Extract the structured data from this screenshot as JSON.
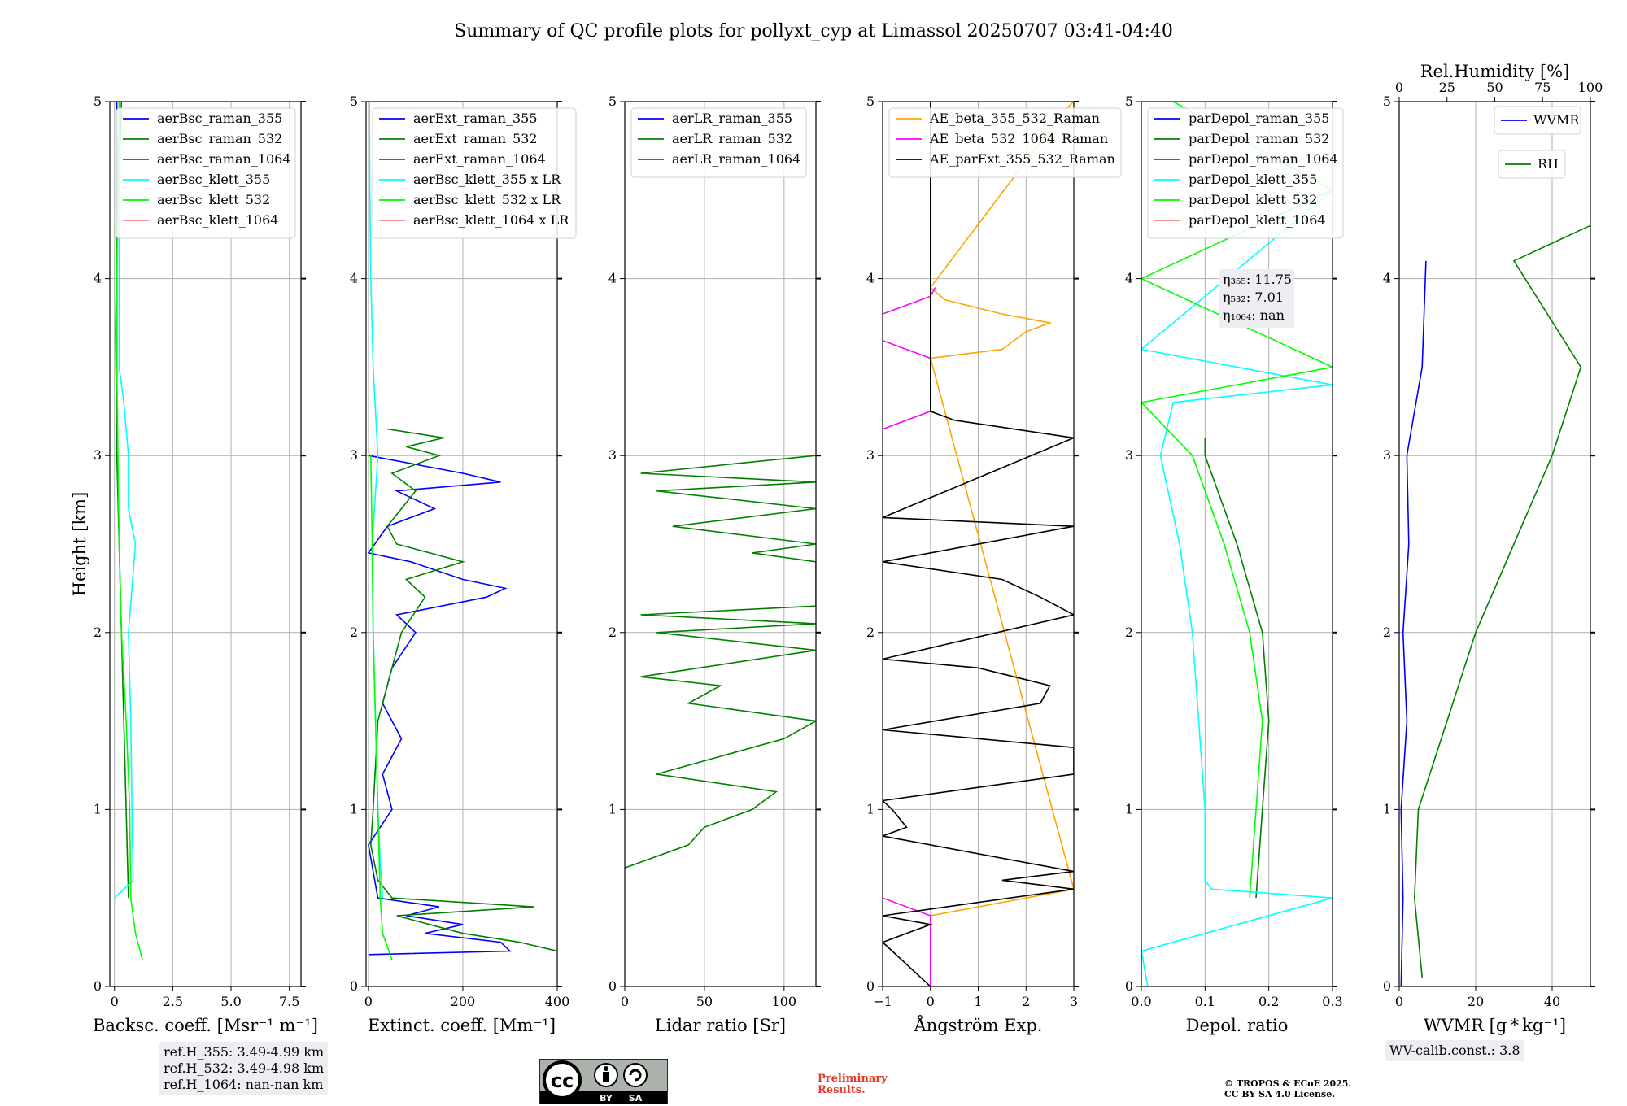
{
  "title": "Summary of QC profile plots for pollyxt_cyp at Limassol 20250707 03:41-04:40",
  "colors": {
    "blue": "#0000ff",
    "green": "#008000",
    "red": "#ff0000",
    "cyan": "#00ffff",
    "lime": "#00ff00",
    "salmon": "#f08080",
    "orange": "#ffa500",
    "magenta": "#ff00ff",
    "black": "#000000",
    "grid": "#b0b0b0"
  },
  "chart_data": [
    {
      "type": "line",
      "xlabel": "Backsc. coeff. [Msr⁻¹ m⁻¹]",
      "ylabel": "Height [km]",
      "xlim": [
        -0.2,
        8.0
      ],
      "ylim": [
        0,
        5
      ],
      "xticks": [
        0,
        2.5,
        5.0,
        7.5
      ],
      "xtick_labels": [
        "0",
        "2.5",
        "5.0",
        "7.5"
      ],
      "yticks": [
        0,
        1,
        2,
        3,
        4,
        5
      ],
      "ytick_labels": [
        "0",
        "1",
        "2",
        "3",
        "4",
        "5"
      ],
      "legend": [
        "aerBsc_raman_355",
        "aerBsc_raman_532",
        "aerBsc_raman_1064",
        "aerBsc_klett_355",
        "aerBsc_klett_532",
        "aerBsc_klett_1064"
      ],
      "series": [
        {
          "name": "aerBsc_raman_355",
          "color": "blue",
          "y": [
            3.2,
            5.0
          ],
          "x": [
            0.1,
            0.1
          ]
        },
        {
          "name": "aerBsc_raman_532",
          "color": "green",
          "y": [
            0.5,
            1.0,
            2.0,
            3.0,
            3.7,
            4.2,
            4.6,
            5.0
          ],
          "x": [
            0.6,
            0.5,
            0.3,
            0.1,
            0.05,
            0.1,
            0.2,
            0.3
          ]
        },
        {
          "name": "aerBsc_klett_355",
          "color": "cyan",
          "y": [
            0.5,
            0.6,
            1.0,
            1.5,
            2.0,
            2.5,
            2.7,
            3.0,
            3.3,
            3.5,
            4.0,
            4.5,
            5.0
          ],
          "x": [
            0.0,
            0.8,
            0.75,
            0.7,
            0.6,
            0.9,
            0.6,
            0.6,
            0.4,
            0.2,
            0.2,
            0.2,
            0.2
          ]
        },
        {
          "name": "aerBsc_klett_532",
          "color": "lime",
          "y": [
            0.15,
            0.3,
            0.5,
            1.0,
            1.5,
            2.0,
            2.5,
            3.0,
            3.5,
            4.0,
            4.5,
            5.0
          ],
          "x": [
            1.2,
            0.9,
            0.7,
            0.65,
            0.5,
            0.3,
            0.2,
            0.15,
            0.1,
            0.1,
            0.15,
            0.2
          ]
        }
      ]
    },
    {
      "type": "line",
      "xlabel": "Extinct. coeff. [Mm⁻¹]",
      "xlim": [
        -5,
        400
      ],
      "ylim": [
        0,
        5
      ],
      "xticks": [
        0,
        200,
        400
      ],
      "xtick_labels": [
        "0",
        "200",
        "400"
      ],
      "yticks": [
        0,
        1,
        2,
        3,
        4,
        5
      ],
      "ytick_labels": [
        "0",
        "1",
        "2",
        "3",
        "4",
        "5"
      ],
      "legend": [
        "aerExt_raman_355",
        "aerExt_raman_532",
        "aerExt_raman_1064",
        "aerBsc_klett_355 x LR",
        "aerBsc_klett_532 x LR",
        "aerBsc_klett_1064 x LR"
      ],
      "series": [
        {
          "name": "aerExt_raman_355",
          "color": "blue",
          "y": [
            0.18,
            0.2,
            0.25,
            0.3,
            0.35,
            0.4,
            0.45,
            0.5,
            0.8,
            1.0,
            1.2,
            1.4,
            1.6,
            1.8,
            2.0,
            2.1,
            2.2,
            2.25,
            2.3,
            2.4,
            2.45,
            2.6,
            2.7,
            2.8,
            2.85,
            2.9,
            3.0
          ],
          "x": [
            0,
            300,
            280,
            120,
            200,
            80,
            150,
            20,
            0,
            50,
            30,
            70,
            30,
            50,
            100,
            60,
            250,
            290,
            200,
            90,
            0,
            40,
            140,
            60,
            280,
            200,
            0
          ]
        },
        {
          "name": "aerExt_raman_532",
          "color": "green",
          "y": [
            0.2,
            0.25,
            0.3,
            0.4,
            0.45,
            0.5,
            0.6,
            0.8,
            1.0,
            1.5,
            2.0,
            2.2,
            2.3,
            2.4,
            2.5,
            2.6,
            2.8,
            2.9,
            3.0,
            3.05,
            3.1,
            3.15
          ],
          "x": [
            400,
            320,
            200,
            60,
            350,
            50,
            20,
            5,
            10,
            20,
            70,
            120,
            80,
            200,
            60,
            40,
            100,
            50,
            150,
            80,
            160,
            40
          ]
        },
        {
          "name": "aerBsc_klett_355 x LR",
          "color": "cyan",
          "y": [
            0.5,
            0.7,
            1.0,
            1.5,
            2.0,
            2.5,
            3.0,
            3.5,
            4.0,
            4.5,
            5.0
          ],
          "x": [
            30,
            25,
            20,
            15,
            10,
            8,
            20,
            10,
            5,
            3,
            2
          ]
        },
        {
          "name": "aerBsc_klett_532 x LR",
          "color": "lime",
          "y": [
            0.15,
            0.3,
            0.5,
            1.0,
            1.5,
            2.0,
            2.5,
            3.0
          ],
          "x": [
            50,
            30,
            25,
            20,
            15,
            10,
            8,
            5
          ]
        }
      ]
    },
    {
      "type": "line",
      "xlabel": "Lidar ratio [Sr]",
      "xlim": [
        0,
        120
      ],
      "ylim": [
        0,
        5
      ],
      "xticks": [
        0,
        50,
        100
      ],
      "xtick_labels": [
        "0",
        "50",
        "100"
      ],
      "yticks": [
        0,
        1,
        2,
        3,
        4,
        5
      ],
      "ytick_labels": [
        "0",
        "1",
        "2",
        "3",
        "4",
        "5"
      ],
      "legend": [
        "aerLR_raman_355",
        "aerLR_raman_532",
        "aerLR_raman_1064"
      ],
      "series": [
        {
          "name": "aerLR_raman_532",
          "color": "green",
          "y": [
            0.67,
            0.8,
            0.9,
            1.0,
            1.1,
            1.2,
            1.3,
            1.4,
            1.5,
            1.6,
            1.7,
            1.75,
            1.9,
            2.0,
            2.05,
            2.1,
            2.15,
            2.4,
            2.45,
            2.5,
            2.6,
            2.7,
            2.8,
            2.85,
            2.9,
            3.0
          ],
          "x": [
            0,
            40,
            50,
            80,
            95,
            20,
            60,
            100,
            120,
            40,
            60,
            10,
            120,
            20,
            120,
            10,
            120,
            120,
            80,
            120,
            30,
            120,
            20,
            120,
            10,
            120
          ]
        }
      ]
    },
    {
      "type": "line",
      "xlabel": "Ångström Exp.",
      "xlim": [
        -1,
        3
      ],
      "ylim": [
        0,
        5
      ],
      "xticks": [
        -1,
        0,
        1,
        2,
        3
      ],
      "xtick_labels": [
        "−1",
        "0",
        "1",
        "2",
        "3"
      ],
      "yticks": [
        0,
        1,
        2,
        3,
        4,
        5
      ],
      "ytick_labels": [
        "0",
        "1",
        "2",
        "3",
        "4",
        "5"
      ],
      "legend": [
        "AE_beta_355_532_Raman",
        "AE_beta_532_1064_Raman",
        "AE_parExt_355_532_Raman"
      ],
      "series": [
        {
          "name": "AE_beta_355_532_Raman",
          "color": "orange",
          "y": [
            0.4,
            0.5,
            0.55,
            3.55,
            3.6,
            3.7,
            3.75,
            3.8,
            3.88,
            3.95,
            4.95,
            5.0
          ],
          "x": [
            0,
            2,
            3,
            0,
            1.5,
            2.0,
            2.5,
            1.5,
            0.3,
            0.0,
            2.8,
            3.0
          ]
        },
        {
          "name": "AE_beta_532_1064_Raman",
          "color": "magenta",
          "y": [
            0.0,
            0.4,
            0.5,
            3.15,
            3.25,
            3.55,
            3.65,
            3.8,
            3.9,
            3.95
          ],
          "x": [
            0,
            0,
            -1,
            -1,
            0,
            0,
            -1,
            -1,
            0,
            0.1
          ]
        },
        {
          "name": "AE_parExt_355_532_Raman",
          "color": "black",
          "y": [
            0.0,
            0.25,
            0.35,
            0.4,
            0.55,
            0.6,
            0.65,
            0.85,
            0.9,
            1.0,
            1.05,
            1.2,
            1.35,
            1.45,
            1.6,
            1.7,
            1.8,
            1.85,
            2.1,
            2.2,
            2.3,
            2.4,
            2.6,
            2.65,
            3.1,
            3.2,
            3.25,
            5.0
          ],
          "x": [
            0,
            -1,
            0,
            -1,
            3,
            1.5,
            3,
            -1,
            -0.5,
            -0.8,
            -1,
            3,
            3,
            -1,
            2.3,
            2.5,
            1.0,
            -1,
            3,
            2.3,
            1.5,
            -1,
            3,
            -1,
            3,
            0.5,
            0,
            0
          ]
        }
      ]
    },
    {
      "type": "line",
      "xlabel": "Depol. ratio",
      "xlim": [
        0,
        0.3
      ],
      "ylim": [
        0,
        5
      ],
      "xticks": [
        0,
        0.1,
        0.2,
        0.3
      ],
      "xtick_labels": [
        "0.0",
        "0.1",
        "0.2",
        "0.3"
      ],
      "yticks": [
        0,
        1,
        2,
        3,
        4,
        5
      ],
      "ytick_labels": [
        "0",
        "1",
        "2",
        "3",
        "4",
        "5"
      ],
      "legend": [
        "parDepol_raman_355",
        "parDepol_raman_532",
        "parDepol_raman_1064",
        "parDepol_klett_355",
        "parDepol_klett_532",
        "parDepol_klett_1064"
      ],
      "series": [
        {
          "name": "parDepol_raman_532",
          "color": "green",
          "y": [
            0.5,
            1.0,
            1.5,
            2.0,
            2.5,
            3.0,
            3.1
          ],
          "x": [
            0.18,
            0.19,
            0.2,
            0.19,
            0.15,
            0.1,
            0.1
          ]
        },
        {
          "name": "parDepol_klett_355",
          "color": "cyan",
          "y": [
            0.0,
            0.2,
            0.5,
            0.55,
            0.6,
            1.0,
            1.5,
            2.0,
            2.5,
            3.0,
            3.3,
            3.4,
            3.6,
            4.5
          ],
          "x": [
            0.01,
            0.0,
            0.3,
            0.11,
            0.1,
            0.1,
            0.09,
            0.08,
            0.06,
            0.03,
            0.05,
            0.3,
            0.0,
            0.3
          ]
        },
        {
          "name": "parDepol_klett_532",
          "color": "lime",
          "y": [
            0.5,
            1.0,
            1.5,
            2.0,
            2.5,
            3.0,
            3.3,
            3.5,
            4.0,
            4.5,
            5.0
          ],
          "x": [
            0.17,
            0.18,
            0.19,
            0.17,
            0.13,
            0.08,
            0.0,
            0.3,
            0.0,
            0.3,
            0.05
          ]
        }
      ],
      "annotation": [
        "η₃₅₅: 11.75",
        "η₅₃₂: 7.01",
        "η₁₀₆₄: nan"
      ]
    },
    {
      "type": "line",
      "xlabel": "WVMR [g * kg⁻¹]",
      "x2label": "Rel.Humidity [%]",
      "xlim": [
        0,
        50
      ],
      "x2lim": [
        0,
        100
      ],
      "ylim": [
        0,
        5
      ],
      "xticks": [
        0,
        20,
        40
      ],
      "xtick_labels": [
        "0",
        "20",
        "40"
      ],
      "x2ticks": [
        0,
        25,
        50,
        75,
        100
      ],
      "x2tick_labels": [
        "0",
        "25",
        "50",
        "75",
        "100"
      ],
      "yticks": [
        0,
        1,
        2,
        3,
        4,
        5
      ],
      "ytick_labels": [
        "0",
        "1",
        "2",
        "3",
        "4",
        "5"
      ],
      "legend": [
        "WVMR",
        "RH"
      ],
      "series": [
        {
          "name": "WVMR",
          "color": "blue",
          "y": [
            0.0,
            0.5,
            1.0,
            1.5,
            2.0,
            2.5,
            3.0,
            3.5,
            4.1
          ],
          "x": [
            0.5,
            1.0,
            0.5,
            2.0,
            1.0,
            2.5,
            2.0,
            6.0,
            7.0
          ]
        },
        {
          "name": "RH",
          "color": "green",
          "y": [
            0.05,
            0.5,
            1.0,
            1.5,
            2.0,
            2.5,
            3.0,
            3.5,
            4.1,
            4.3
          ],
          "x": [
            12,
            8,
            10,
            25,
            40,
            60,
            80,
            95,
            60,
            100
          ]
        }
      ],
      "annotation": "WV-calib.const.: 3.8"
    }
  ],
  "ref_heights": [
    "ref.H_355: 3.49-4.99 km",
    "ref.H_532: 3.49-4.98 km",
    "ref.H_1064: nan-nan km"
  ],
  "license_badge": {
    "icon": "cc-by-sa-icon",
    "labels": [
      "BY",
      "SA"
    ]
  },
  "preliminary": [
    "Preliminary",
    "Results."
  ],
  "copyright": [
    "© TROPOS & ECoE 2025.",
    "CC BY SA 4.0 License."
  ]
}
